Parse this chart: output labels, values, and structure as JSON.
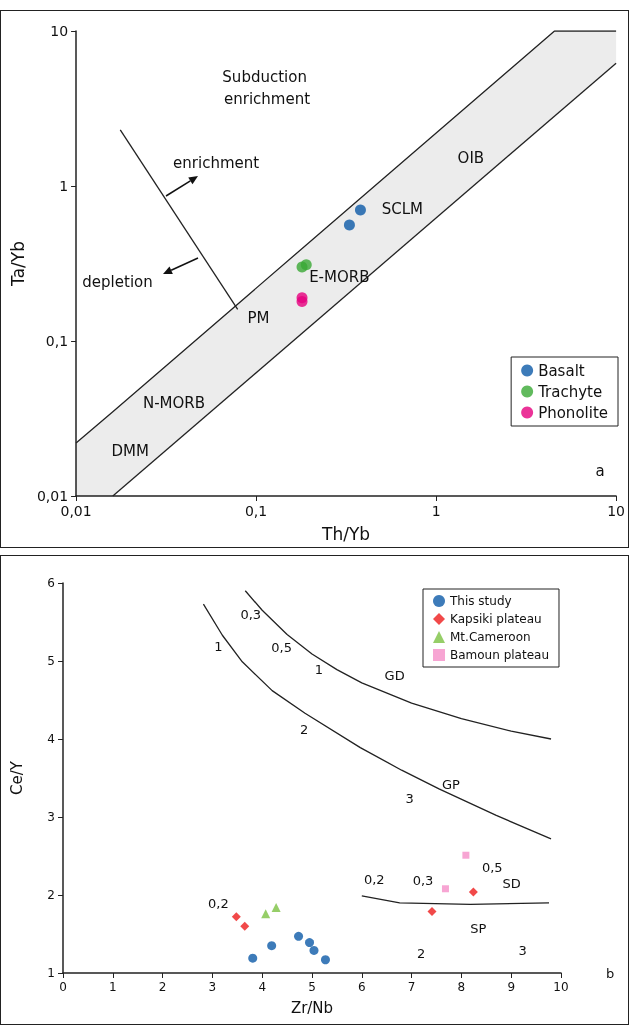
{
  "chart_data": [
    {
      "type": "scatter",
      "xlabel": "Th/Yb",
      "ylabel": "Ta/Yb",
      "log": "xy",
      "legend": "bottom right",
      "grid": false,
      "xlim": [
        0.01,
        10
      ],
      "ylim": [
        0.01,
        10
      ],
      "xticks": [
        {
          "value": 0.01,
          "label": "0,01"
        },
        {
          "value": 0.1,
          "label": "0,1"
        },
        1,
        10
      ],
      "yticks": [
        {
          "value": 0.01,
          "label": "0,01"
        },
        {
          "value": 0.1,
          "label": "0,1"
        },
        1,
        10
      ],
      "series": [
        {
          "type": "line",
          "color": "#222222",
          "x": [
            0.01,
            0.016,
            4.55,
            10
          ],
          "values": [
            0.022,
            0.035,
            10,
            10
          ],
          "upper": [
            0.022,
            0.035,
            10,
            10
          ],
          "lower": [
            0.01,
            0.01,
            2.82,
            6.2
          ]
        },
        {
          "type": "line",
          "color": "#222222",
          "x": [
            0.016,
            10
          ],
          "values": [
            0.01,
            6.2
          ]
        },
        {
          "type": "line",
          "color": "#222222",
          "x": [
            0.0176,
            0.079
          ],
          "values": [
            2.3,
            0.16
          ]
        },
        {
          "name": "Basalt",
          "color": "#0d5aa7",
          "marker": "circle",
          "x": [
            0.38,
            0.33
          ],
          "values": [
            0.7,
            0.56
          ]
        },
        {
          "name": "Trachyte",
          "color": "#3aa935",
          "marker": "circle",
          "x": [
            0.18,
            0.19
          ],
          "values": [
            0.3,
            0.31
          ]
        },
        {
          "name": "Phonolite",
          "color": "#e6007e",
          "marker": "circle",
          "x": [
            0.18,
            0.18
          ],
          "values": [
            0.19,
            0.18
          ]
        }
      ],
      "annotations": [
        "Subduction enrichment",
        "enrichment",
        "depletion",
        "PM",
        "E-MORB",
        "SCLM",
        "OIB",
        "N-MORB",
        "DMM",
        "a"
      ]
    },
    {
      "type": "scatter",
      "xlabel": "Zr/Nb",
      "ylabel": "Ce/Y",
      "legend": "top right",
      "grid": false,
      "xlim": [
        0,
        10
      ],
      "ylim": [
        1,
        6
      ],
      "xticks": [
        0,
        1,
        2,
        3,
        4,
        5,
        6,
        7,
        8,
        9,
        10
      ],
      "yticks": [
        1,
        2,
        3,
        4,
        5,
        6
      ],
      "series": [
        {
          "type": "line",
          "color": "#222222",
          "x": [
            3.66,
            4,
            4.5,
            5,
            5.5,
            6,
            7,
            8,
            9,
            9.8
          ],
          "values": [
            5.9,
            5.65,
            5.34,
            5.09,
            4.89,
            4.72,
            4.46,
            4.26,
            4.1,
            4.0
          ]
        },
        {
          "type": "line",
          "color": "#222222",
          "x": [
            2.82,
            3.2,
            3.6,
            4.2,
            4.86,
            5.97,
            6.8,
            7.55,
            8.7,
            9.8
          ],
          "values": [
            5.73,
            5.33,
            4.99,
            4.62,
            4.33,
            3.89,
            3.6,
            3.36,
            3.02,
            2.72
          ]
        },
        {
          "type": "line",
          "color": "#222222",
          "x": [
            6.0,
            6.76,
            8.18,
            9.76
          ],
          "values": [
            1.99,
            1.9,
            1.88,
            1.9
          ]
        },
        {
          "name": "This study",
          "color": "#0d5aa7",
          "marker": "circle",
          "x": [
            3.81,
            4.19,
            4.73,
            4.95,
            5.04,
            5.27
          ],
          "values": [
            1.19,
            1.35,
            1.47,
            1.39,
            1.29,
            1.17
          ]
        },
        {
          "name": "Kapsiki plateau",
          "color": "#ee1c1c",
          "marker": "diamond",
          "x": [
            3.48,
            3.65,
            7.41,
            8.24
          ],
          "values": [
            1.72,
            1.6,
            1.79,
            2.04
          ]
        },
        {
          "name": "Mt.Cameroon",
          "color": "#7cc242",
          "marker": "triangle",
          "x": [
            4.07,
            4.28
          ],
          "values": [
            1.76,
            1.84
          ]
        },
        {
          "name": "Bamoun plateau",
          "color": "#f58fc8",
          "marker": "square",
          "x": [
            7.68,
            8.09
          ],
          "values": [
            2.08,
            2.51
          ]
        }
      ],
      "annotations": [
        "0,3",
        "1",
        "0,5",
        "1",
        "GD",
        "2",
        "GP",
        "3",
        "0,2",
        "0,2",
        "0,3",
        "0,5",
        "SD",
        "SP",
        "2",
        "3",
        "b"
      ]
    }
  ]
}
